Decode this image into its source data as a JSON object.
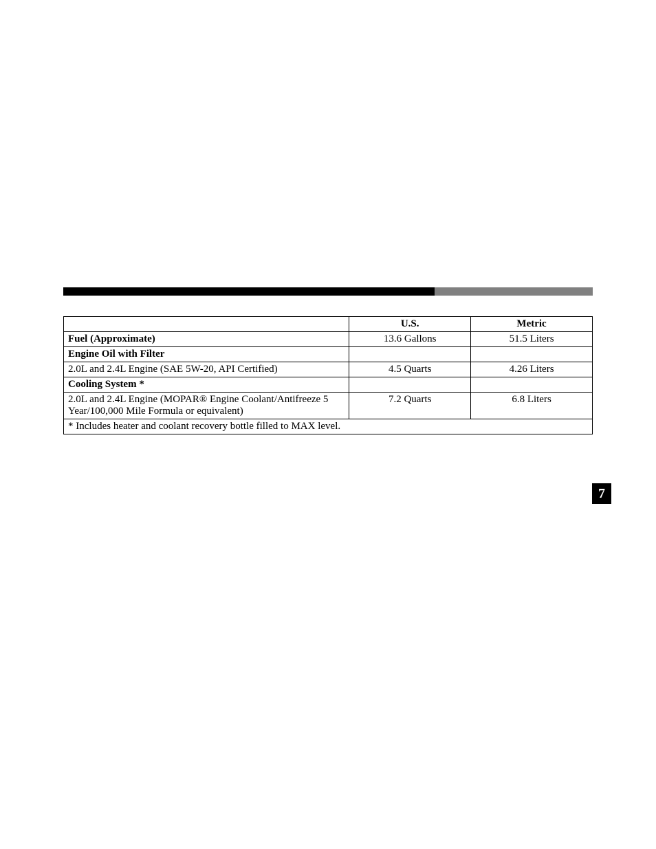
{
  "section_tab": "7",
  "table": {
    "headers": {
      "item": "",
      "us": "U.S.",
      "metric": "Metric"
    },
    "rows": [
      {
        "item": "Fuel (Approximate)",
        "us": "13.6 Gallons",
        "metric": "51.5 Liters",
        "bold": true
      },
      {
        "item": "Engine Oil with Filter",
        "us": "",
        "metric": "",
        "bold": true
      },
      {
        "item": "2.0L and 2.4L Engine (SAE 5W-20, API Certified)",
        "us": "4.5 Quarts",
        "metric": "4.26 Liters",
        "bold": false
      },
      {
        "item": "Cooling System *",
        "us": "",
        "metric": "",
        "bold": true
      },
      {
        "item": "2.0L and 2.4L Engine (MOPAR® Engine Coolant/Antifreeze 5 Year/100,000 Mile Formula or equivalent)",
        "us": "7.2 Quarts",
        "metric": "6.8 Liters",
        "bold": false
      }
    ],
    "footnote": "* Includes heater and coolant recovery bottle filled to MAX level."
  }
}
